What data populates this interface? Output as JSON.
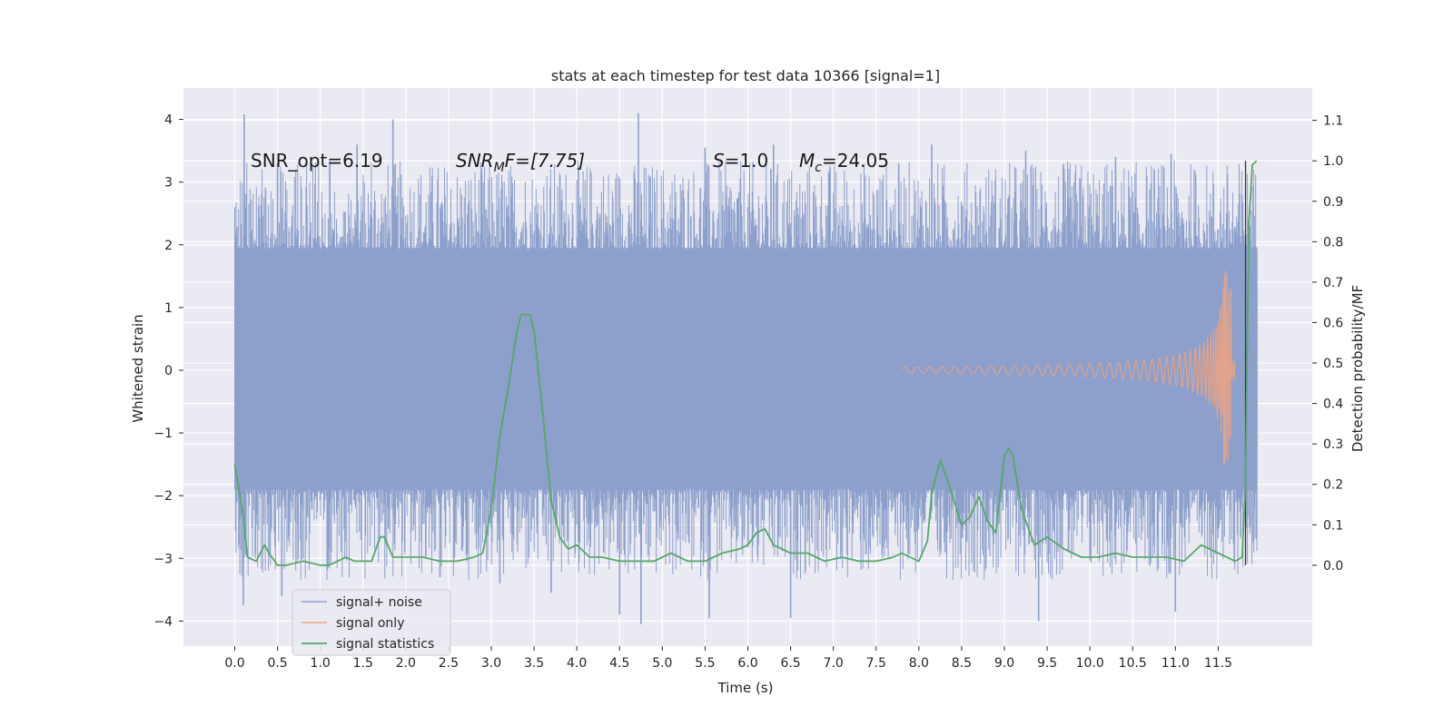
{
  "chart_data": {
    "type": "line",
    "title": "stats at each timestep for test data 10366 [signal=1]",
    "xlabel": "Time (s)",
    "ylabel_left": "Whitened strain",
    "ylabel_right": "Detection probability/MF",
    "xlim": [
      -0.6,
      12.6
    ],
    "ylim_left": [
      -4.4,
      4.5
    ],
    "ylim_right": [
      -0.2,
      1.18
    ],
    "x_ticks": [
      "0.0",
      "0.5",
      "1.0",
      "1.5",
      "2.0",
      "2.5",
      "3.0",
      "3.5",
      "4.0",
      "4.5",
      "5.0",
      "5.5",
      "6.0",
      "6.5",
      "7.0",
      "7.5",
      "8.0",
      "8.5",
      "9.0",
      "9.5",
      "10.0",
      "10.5",
      "11.0",
      "11.5"
    ],
    "y_ticks_left": [
      "−4",
      "−3",
      "−2",
      "−1",
      "0",
      "1",
      "2",
      "3",
      "4"
    ],
    "y_ticks_right": [
      "0.0",
      "0.1",
      "0.2",
      "0.3",
      "0.4",
      "0.5",
      "0.6",
      "0.7",
      "0.8",
      "0.9",
      "1.0",
      "1.1"
    ],
    "grid": true,
    "legend_position": "lower-left",
    "annotations": {
      "snr_opt": "SNR_opt=6.19",
      "snr_mf_main": "SNR",
      "snr_mf_sub": "M",
      "snr_mf_rest": "F=[7.75]",
      "s_label": "S",
      "s_value": "=1.0",
      "mc_label": "M",
      "mc_sub": "c",
      "mc_value": "=24.05"
    },
    "merger_marker_x": 11.82,
    "series": [
      {
        "name": "signal+ noise",
        "color": "#8da0cb",
        "axis": "left",
        "x_range": [
          0.0,
          11.96
        ],
        "dense_band": [
          -1.25,
          1.3
        ],
        "mid_band": [
          -1.9,
          1.95
        ],
        "peaks": [
          {
            "x": 0.11,
            "y": 4.08
          },
          {
            "x": 0.5,
            "y": 3.3
          },
          {
            "x": 1.43,
            "y": 3.6
          },
          {
            "x": 1.85,
            "y": 4.0
          },
          {
            "x": 4.72,
            "y": 4.1
          },
          {
            "x": 5.5,
            "y": 3.55
          },
          {
            "x": 6.3,
            "y": 3.6
          },
          {
            "x": 8.15,
            "y": 3.6
          },
          {
            "x": 9.25,
            "y": 3.5
          },
          {
            "x": 10.3,
            "y": 3.4
          },
          {
            "x": 10.95,
            "y": 3.45
          },
          {
            "x": 0.1,
            "y": -3.75
          },
          {
            "x": 4.5,
            "y": -3.9
          },
          {
            "x": 4.75,
            "y": -4.05
          },
          {
            "x": 5.55,
            "y": -3.95
          },
          {
            "x": 6.5,
            "y": -3.95
          },
          {
            "x": 9.4,
            "y": -4.0
          },
          {
            "x": 11.0,
            "y": -3.85
          },
          {
            "x": 0.55,
            "y": -3.6
          },
          {
            "x": 2.4,
            "y": -3.3
          },
          {
            "x": 3.1,
            "y": -3.4
          },
          {
            "x": 3.7,
            "y": -3.55
          }
        ]
      },
      {
        "name": "signal only",
        "color": "#e9a384",
        "axis": "left",
        "start_x": 7.8,
        "peak_x": 11.65,
        "peak_amplitude": 1.6,
        "end_x": 11.7
      },
      {
        "name": "signal statistics",
        "color": "#55a868",
        "axis": "right",
        "x": [
          0.0,
          0.1,
          0.15,
          0.25,
          0.35,
          0.4,
          0.5,
          0.6,
          0.8,
          1.0,
          1.1,
          1.3,
          1.4,
          1.5,
          1.6,
          1.7,
          1.75,
          1.85,
          1.95,
          2.05,
          2.2,
          2.4,
          2.6,
          2.8,
          2.9,
          3.0,
          3.1,
          3.2,
          3.3,
          3.35,
          3.45,
          3.5,
          3.6,
          3.7,
          3.8,
          3.9,
          4.0,
          4.15,
          4.3,
          4.5,
          4.7,
          4.9,
          5.0,
          5.1,
          5.3,
          5.5,
          5.7,
          5.9,
          6.0,
          6.1,
          6.2,
          6.3,
          6.5,
          6.7,
          6.9,
          7.1,
          7.3,
          7.5,
          7.7,
          7.8,
          7.9,
          8.0,
          8.1,
          8.15,
          8.25,
          8.35,
          8.5,
          8.6,
          8.7,
          8.75,
          8.8,
          8.9,
          9.0,
          9.05,
          9.1,
          9.2,
          9.35,
          9.5,
          9.7,
          9.9,
          10.1,
          10.3,
          10.5,
          10.7,
          10.9,
          11.1,
          11.3,
          11.5,
          11.7,
          11.78,
          11.82,
          11.86,
          11.9,
          11.95
        ],
        "y": [
          0.25,
          0.12,
          0.02,
          0.01,
          0.05,
          0.03,
          0.0,
          0.0,
          0.01,
          0.0,
          0.0,
          0.02,
          0.01,
          0.01,
          0.01,
          0.07,
          0.07,
          0.02,
          0.02,
          0.02,
          0.02,
          0.01,
          0.01,
          0.02,
          0.03,
          0.14,
          0.32,
          0.44,
          0.58,
          0.62,
          0.62,
          0.58,
          0.38,
          0.16,
          0.07,
          0.04,
          0.05,
          0.02,
          0.02,
          0.01,
          0.01,
          0.01,
          0.02,
          0.03,
          0.01,
          0.01,
          0.03,
          0.04,
          0.05,
          0.08,
          0.09,
          0.05,
          0.03,
          0.03,
          0.01,
          0.02,
          0.01,
          0.01,
          0.02,
          0.03,
          0.02,
          0.01,
          0.06,
          0.18,
          0.26,
          0.2,
          0.1,
          0.12,
          0.17,
          0.14,
          0.11,
          0.08,
          0.27,
          0.29,
          0.27,
          0.14,
          0.05,
          0.07,
          0.04,
          0.02,
          0.02,
          0.03,
          0.02,
          0.02,
          0.02,
          0.01,
          0.05,
          0.03,
          0.01,
          0.02,
          0.2,
          0.85,
          0.99,
          1.0
        ]
      }
    ]
  }
}
